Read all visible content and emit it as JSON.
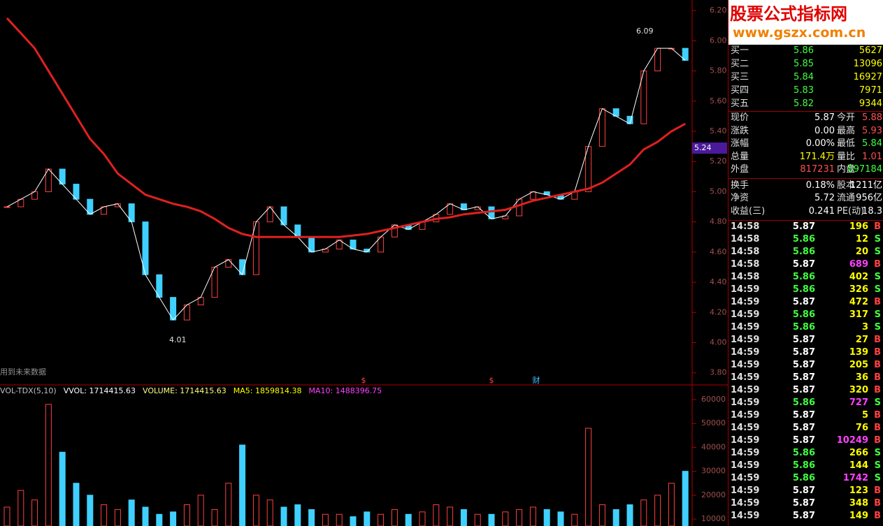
{
  "price_chart": {
    "ylim": [
      3.72,
      6.27
    ],
    "yticks": [
      {
        "value": 6.2,
        "label": "6.20"
      },
      {
        "value": 6.0,
        "label": "6.00"
      },
      {
        "value": 5.8,
        "label": "5.80"
      },
      {
        "value": 5.6,
        "label": "5.60"
      },
      {
        "value": 5.4,
        "label": "5.40"
      },
      {
        "value": 5.2,
        "label": "5.20"
      },
      {
        "value": 5.0,
        "label": "5.00"
      },
      {
        "value": 4.8,
        "label": "4.80"
      },
      {
        "value": 4.6,
        "label": "4.60"
      },
      {
        "value": 4.4,
        "label": "4.40"
      },
      {
        "value": 4.2,
        "label": "4.20"
      },
      {
        "value": 4.0,
        "label": "4.00"
      },
      {
        "value": 3.8,
        "label": "3.80"
      }
    ],
    "close": [
      4.9,
      4.95,
      5.0,
      5.15,
      5.05,
      4.95,
      4.85,
      4.9,
      4.92,
      4.8,
      4.45,
      4.3,
      4.15,
      4.25,
      4.3,
      4.5,
      4.55,
      4.45,
      4.8,
      4.9,
      4.78,
      4.7,
      4.6,
      4.62,
      4.68,
      4.62,
      4.6,
      4.7,
      4.78,
      4.75,
      4.8,
      4.85,
      4.92,
      4.88,
      4.9,
      4.82,
      4.84,
      4.95,
      5.0,
      4.98,
      4.95,
      5.0,
      5.3,
      5.55,
      5.5,
      5.45,
      5.8,
      5.95,
      5.95,
      5.87
    ],
    "ma": [
      6.15,
      6.05,
      5.95,
      5.8,
      5.65,
      5.5,
      5.35,
      5.25,
      5.12,
      5.05,
      4.98,
      4.95,
      4.92,
      4.9,
      4.87,
      4.82,
      4.76,
      4.72,
      4.7,
      4.7,
      4.7,
      4.7,
      4.7,
      4.7,
      4.7,
      4.71,
      4.72,
      4.74,
      4.76,
      4.78,
      4.8,
      4.82,
      4.83,
      4.85,
      4.86,
      4.87,
      4.88,
      4.91,
      4.94,
      4.96,
      4.98,
      5.0,
      5.02,
      5.06,
      5.12,
      5.18,
      5.28,
      5.33,
      5.4,
      5.45
    ],
    "high_label": "6.09",
    "low_label": "4.01",
    "current_label": "5.24",
    "note": "用到未来数据",
    "markers": [
      "$",
      "$",
      "财"
    ]
  },
  "volume_chart": {
    "ylim": [
      7100,
      65850
    ],
    "yticks": [
      10000,
      20000,
      30000,
      40000,
      50000,
      60000
    ],
    "header": [
      {
        "text": "VOL-TDX(5,10)",
        "color": "#c0c0c0"
      },
      {
        "text": "VVOL: 1714415.63",
        "color": "#ffffff"
      },
      {
        "text": "VOLUME: 1714415.63",
        "color": "#ffff80"
      },
      {
        "text": "MA5: 1859814.38",
        "color": "#ffff00"
      },
      {
        "text": "MA10: 1488396.75",
        "color": "#ff40ff"
      }
    ],
    "values": [
      15000,
      22000,
      18000,
      58000,
      38000,
      25000,
      20000,
      16000,
      14000,
      18000,
      15000,
      12000,
      13000,
      16000,
      20000,
      14000,
      25000,
      41000,
      20000,
      18000,
      15000,
      16000,
      14000,
      12000,
      12000,
      11000,
      13000,
      12000,
      14000,
      12000,
      13000,
      16000,
      15000,
      14000,
      12000,
      12000,
      13000,
      14000,
      15000,
      14000,
      13000,
      12000,
      48000,
      16000,
      14000,
      16000,
      18000,
      20000,
      25000,
      30000
    ]
  },
  "logo": {
    "title": "股票公式指标网",
    "url": "www.gszx.com.cn"
  },
  "order_book": [
    [
      "买一",
      "5.86",
      "5627"
    ],
    [
      "买二",
      "5.85",
      "13096"
    ],
    [
      "买三",
      "5.84",
      "16927"
    ],
    [
      "买四",
      "5.83",
      "7971"
    ],
    [
      "买五",
      "5.82",
      "9344"
    ]
  ],
  "quote": {
    "rows": [
      [
        "现价",
        "5.87",
        "今开",
        "5.88"
      ],
      [
        "涨跌",
        "0.00",
        "最高",
        "5.93"
      ],
      [
        "涨幅",
        "0.00%",
        "最低",
        "5.84"
      ],
      [
        "总量",
        "171.4万",
        "量比",
        "1.01"
      ],
      [
        "外盘",
        "817231",
        "内盘",
        "897184"
      ],
      [
        "换手",
        "0.18%",
        "股本",
        "1211亿"
      ],
      [
        "净资",
        "5.72",
        "流通",
        "956亿"
      ],
      [
        "收益(三)",
        "0.241",
        "PE(动)",
        "18.3"
      ]
    ],
    "value_colors": [
      [
        "#ffffff",
        "#ff5050"
      ],
      [
        "#ffffff",
        "#ff5050"
      ],
      [
        "#ffffff",
        "#40ff40"
      ],
      [
        "#ffff00",
        "#ff5050"
      ],
      [
        "#ff5050",
        "#40ff40"
      ],
      [
        "#ffffff",
        "#ffffff"
      ],
      [
        "#ffffff",
        "#ffffff"
      ],
      [
        "#ffffff",
        "#ffffff"
      ]
    ]
  },
  "trades": [
    [
      "14:58",
      "5.87",
      "196",
      "B"
    ],
    [
      "14:58",
      "5.86",
      "12",
      "S"
    ],
    [
      "14:58",
      "5.86",
      "20",
      "S"
    ],
    [
      "14:58",
      "5.87",
      "689",
      "B"
    ],
    [
      "14:58",
      "5.86",
      "402",
      "S"
    ],
    [
      "14:59",
      "5.86",
      "326",
      "S"
    ],
    [
      "14:59",
      "5.87",
      "472",
      "B"
    ],
    [
      "14:59",
      "5.86",
      "317",
      "S"
    ],
    [
      "14:59",
      "5.86",
      "3",
      "S"
    ],
    [
      "14:59",
      "5.87",
      "27",
      "B"
    ],
    [
      "14:59",
      "5.87",
      "139",
      "B"
    ],
    [
      "14:59",
      "5.87",
      "205",
      "B"
    ],
    [
      "14:59",
      "5.87",
      "36",
      "B"
    ],
    [
      "14:59",
      "5.87",
      "320",
      "B"
    ],
    [
      "14:59",
      "5.86",
      "727",
      "S"
    ],
    [
      "14:59",
      "5.87",
      "5",
      "B"
    ],
    [
      "14:59",
      "5.87",
      "76",
      "B"
    ],
    [
      "14:59",
      "5.87",
      "10249",
      "B"
    ],
    [
      "14:59",
      "5.86",
      "266",
      "S"
    ],
    [
      "14:59",
      "5.86",
      "144",
      "S"
    ],
    [
      "14:59",
      "5.86",
      "1742",
      "S"
    ],
    [
      "14:59",
      "5.87",
      "123",
      "B"
    ],
    [
      "14:59",
      "5.87",
      "348",
      "B"
    ],
    [
      "14:59",
      "5.87",
      "149",
      "B"
    ]
  ]
}
